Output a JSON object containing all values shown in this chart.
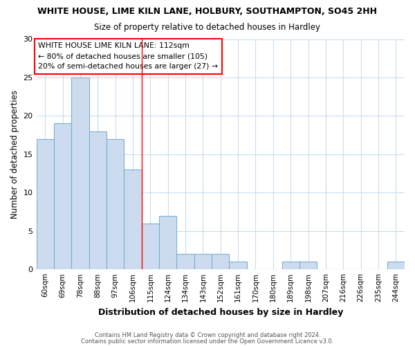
{
  "title1": "WHITE HOUSE, LIME KILN LANE, HOLBURY, SOUTHAMPTON, SO45 2HH",
  "title2": "Size of property relative to detached houses in Hardley",
  "xlabel": "Distribution of detached houses by size in Hardley",
  "ylabel": "Number of detached properties",
  "categories": [
    "60sqm",
    "69sqm",
    "78sqm",
    "88sqm",
    "97sqm",
    "106sqm",
    "115sqm",
    "124sqm",
    "134sqm",
    "143sqm",
    "152sqm",
    "161sqm",
    "170sqm",
    "180sqm",
    "189sqm",
    "198sqm",
    "207sqm",
    "216sqm",
    "226sqm",
    "235sqm",
    "244sqm"
  ],
  "values": [
    17,
    19,
    25,
    18,
    17,
    13,
    6,
    7,
    2,
    2,
    2,
    1,
    0,
    0,
    1,
    1,
    0,
    0,
    0,
    0,
    1
  ],
  "bar_color": "#ccdcee",
  "bar_edge_color": "#7aadd4",
  "annotation_text": "WHITE HOUSE LIME KILN LANE: 112sqm\n← 80% of detached houses are smaller (105)\n20% of semi-detached houses are larger (27) →",
  "footer1": "Contains HM Land Registry data © Crown copyright and database right 2024.",
  "footer2": "Contains public sector information licensed under the Open Government Licence v3.0.",
  "ylim": [
    0,
    30
  ],
  "yticks": [
    0,
    5,
    10,
    15,
    20,
    25,
    30
  ],
  "red_line_index": 6.0,
  "grid_color": "#c8ddf0"
}
